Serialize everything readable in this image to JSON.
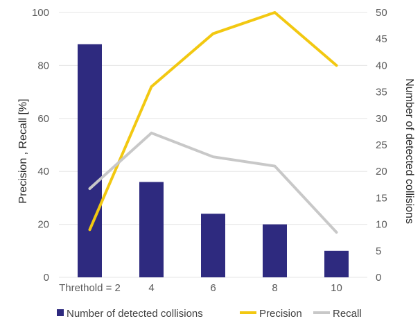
{
  "chart_data": {
    "type": "bar",
    "categories": [
      "Threthold = 2",
      "4",
      "6",
      "8",
      "10"
    ],
    "series": [
      {
        "name": "Number of detected  collisions",
        "type": "bar",
        "axis": "right",
        "values": [
          44,
          18,
          12,
          10,
          5
        ],
        "color": "#2e2a7f"
      },
      {
        "name": "Precision",
        "type": "line",
        "axis": "left",
        "values": [
          18,
          72,
          92,
          100,
          80
        ],
        "color": "#f2c811"
      },
      {
        "name": "Recall",
        "type": "line",
        "axis": "left",
        "values": [
          33.5,
          54.5,
          45.5,
          42,
          17
        ],
        "color": "#c8c8c8"
      }
    ],
    "ylabel": "Precision , Recall [%]",
    "y2label": "Number of detected collisions",
    "ylim": [
      0,
      100
    ],
    "y2lim": [
      0,
      50
    ],
    "yticks": [
      "0",
      "20",
      "40",
      "60",
      "80",
      "100"
    ],
    "y2ticks": [
      "0",
      "5",
      "10",
      "15",
      "20",
      "25",
      "30",
      "35",
      "40",
      "45",
      "50"
    ],
    "grid": true,
    "legend": "bottom"
  }
}
